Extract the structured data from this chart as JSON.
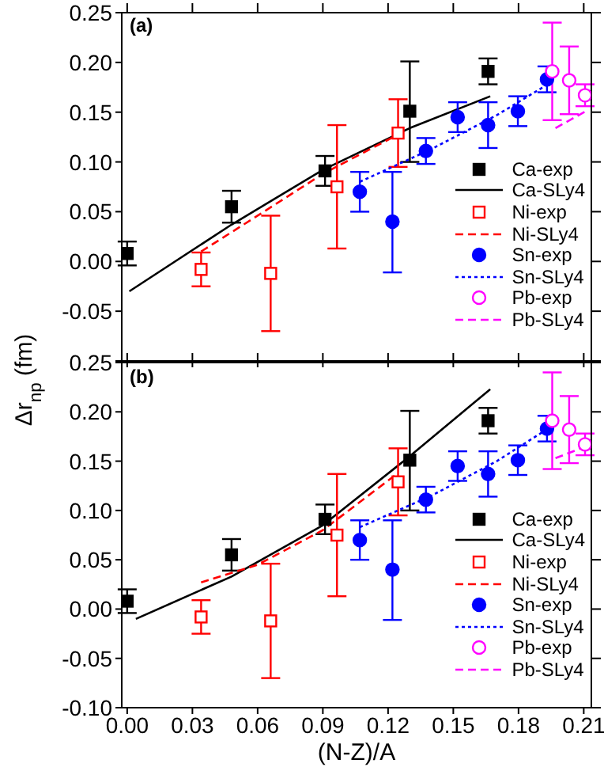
{
  "chart_data": [
    {
      "type": "scatter",
      "annotations": [
        "(a)"
      ],
      "ylabel": "Δr$_{np}$ (fm)",
      "xlim": [
        -0.0025,
        0.2135
      ],
      "xticks": [
        0,
        0.03,
        0.06,
        0.09,
        0.12,
        0.15,
        0.18,
        0.21
      ],
      "ylim": [
        -0.1,
        0.25
      ],
      "yticks": [
        {
          "value": -0.1,
          "label": null
        },
        {
          "value": -0.05,
          "label": "-0.05"
        },
        {
          "value": 0,
          "label": "0.00"
        },
        {
          "value": 0.05,
          "label": "0.05"
        },
        {
          "value": 0.1,
          "label": "0.10"
        },
        {
          "value": 0.15,
          "label": "0.15"
        },
        {
          "value": 0.2,
          "label": "0.20"
        },
        {
          "value": 0.25,
          "label": "0.25"
        }
      ],
      "tick_labels": "y",
      "grid": false,
      "legend": "right",
      "series": [
        {
          "name": "Ca-exp",
          "type": "scatter",
          "marker": "square",
          "color": "#000000",
          "x": [
            0.0,
            0.048,
            0.091,
            0.13,
            0.166
          ],
          "values": [
            0.008,
            0.055,
            0.091,
            0.151,
            0.191
          ],
          "errors": [
            [
              -0.004,
              0.02
            ],
            [
              0.039,
              0.071
            ],
            [
              0.076,
              0.106
            ],
            [
              0.1,
              0.201
            ],
            [
              0.178,
              0.204
            ]
          ]
        },
        {
          "name": "Ca-SLy4",
          "type": "line",
          "line_style": "solid",
          "color": "#000000",
          "x": [
            0.001,
            0.048,
            0.09,
            0.13,
            0.167
          ],
          "values": [
            -0.03,
            0.037,
            0.092,
            0.134,
            0.166
          ]
        },
        {
          "name": "Ni-exp",
          "type": "scatter",
          "marker": "square",
          "color": "#ff0000",
          "x": [
            0.034,
            0.066,
            0.0965,
            0.1246
          ],
          "values": [
            -0.008,
            -0.012,
            0.075,
            0.129
          ],
          "errors": [
            [
              -0.025,
              0.009
            ],
            [
              -0.07,
              0.046
            ],
            [
              0.013,
              0.137
            ],
            [
              0.095,
              0.163
            ]
          ]
        },
        {
          "name": "Ni-SLy4",
          "type": "line",
          "line_style": "dashed",
          "color": "#ff0000",
          "x": [
            0.034,
            0.06,
            0.09,
            0.125
          ],
          "values": [
            0.01,
            0.046,
            0.088,
            0.128
          ]
        },
        {
          "name": "Sn-exp",
          "type": "scatter",
          "marker": "circle",
          "color": "#0000ff",
          "x": [
            0.107,
            0.122,
            0.1374,
            0.152,
            0.166,
            0.1797,
            0.1931
          ],
          "values": [
            0.07,
            0.04,
            0.111,
            0.145,
            0.137,
            0.151,
            0.183
          ],
          "errors": [
            [
              0.05,
              0.09
            ],
            [
              -0.011,
              0.09
            ],
            [
              0.098,
              0.124
            ],
            [
              0.13,
              0.16
            ],
            [
              0.114,
              0.16
            ],
            [
              0.136,
              0.166
            ],
            [
              0.17,
              0.196
            ]
          ]
        },
        {
          "name": "Sn-SLy4",
          "type": "line",
          "line_style": "dotted",
          "color": "#0000ff",
          "x": [
            0.107,
            0.14,
            0.17,
            0.195
          ],
          "values": [
            0.08,
            0.113,
            0.147,
            0.18
          ]
        },
        {
          "name": "Pb-exp",
          "type": "scatter",
          "marker": "circle",
          "color": "#ff00ff",
          "x": [
            0.1955,
            0.2033,
            0.2106
          ],
          "values": [
            0.191,
            0.182,
            0.167
          ],
          "errors": [
            [
              0.142,
              0.24
            ],
            [
              0.148,
              0.216
            ],
            [
              0.156,
              0.178
            ]
          ]
        },
        {
          "name": "Pb-SLy4",
          "type": "line",
          "line_style": "dashed",
          "color": "#ff00ff",
          "x": [
            0.197,
            0.211
          ],
          "values": [
            0.134,
            0.151
          ]
        }
      ]
    },
    {
      "type": "scatter",
      "annotations": [
        "(b)"
      ],
      "xlabel": "(N-Z)/A",
      "xlim": [
        -0.0025,
        0.2135
      ],
      "xticks": [
        {
          "value": 0,
          "label": "0.00"
        },
        {
          "value": 0.03,
          "label": "0.03"
        },
        {
          "value": 0.06,
          "label": "0.06"
        },
        {
          "value": 0.09,
          "label": "0.09"
        },
        {
          "value": 0.12,
          "label": "0.12"
        },
        {
          "value": 0.15,
          "label": "0.15"
        },
        {
          "value": 0.18,
          "label": "0.18"
        },
        {
          "value": 0.21,
          "label": "0.21"
        }
      ],
      "ylim": [
        -0.1,
        0.25
      ],
      "yticks": [
        {
          "value": -0.1,
          "label": "-0.10"
        },
        {
          "value": -0.05,
          "label": "-0.05"
        },
        {
          "value": 0,
          "label": "0.00"
        },
        {
          "value": 0.05,
          "label": "0.05"
        },
        {
          "value": 0.1,
          "label": "0.10"
        },
        {
          "value": 0.15,
          "label": "0.15"
        },
        {
          "value": 0.2,
          "label": "0.20"
        },
        {
          "value": 0.25,
          "label": "0.25"
        }
      ],
      "grid": false,
      "legend": "right",
      "series": [
        {
          "name": "Ca-exp",
          "type": "scatter",
          "marker": "square",
          "color": "#000000",
          "x": [
            0.0,
            0.048,
            0.091,
            0.13,
            0.166
          ],
          "values": [
            0.008,
            0.055,
            0.091,
            0.151,
            0.191
          ],
          "errors": [
            [
              -0.004,
              0.02
            ],
            [
              0.039,
              0.071
            ],
            [
              0.076,
              0.106
            ],
            [
              0.1,
              0.201
            ],
            [
              0.178,
              0.204
            ]
          ]
        },
        {
          "name": "Ca-SLy4",
          "type": "line",
          "line_style": "solid",
          "color": "#000000",
          "x": [
            0.004,
            0.048,
            0.09,
            0.13,
            0.167
          ],
          "values": [
            -0.01,
            0.033,
            0.085,
            0.155,
            0.223
          ]
        },
        {
          "name": "Ni-exp",
          "type": "scatter",
          "marker": "square",
          "color": "#ff0000",
          "x": [
            0.034,
            0.066,
            0.0965,
            0.1246
          ],
          "values": [
            -0.008,
            -0.012,
            0.075,
            0.129
          ],
          "errors": [
            [
              -0.025,
              0.009
            ],
            [
              -0.07,
              0.046
            ],
            [
              0.013,
              0.137
            ],
            [
              0.095,
              0.163
            ]
          ]
        },
        {
          "name": "Ni-SLy4",
          "type": "line",
          "line_style": "dashed",
          "color": "#ff0000",
          "x": [
            0.034,
            0.06,
            0.09,
            0.124
          ],
          "values": [
            0.027,
            0.045,
            0.08,
            0.137
          ]
        },
        {
          "name": "Sn-exp",
          "type": "scatter",
          "marker": "circle",
          "color": "#0000ff",
          "x": [
            0.107,
            0.122,
            0.1374,
            0.152,
            0.166,
            0.1797,
            0.1931
          ],
          "values": [
            0.07,
            0.04,
            0.111,
            0.145,
            0.137,
            0.151,
            0.183
          ],
          "errors": [
            [
              0.05,
              0.09
            ],
            [
              -0.011,
              0.09
            ],
            [
              0.098,
              0.124
            ],
            [
              0.13,
              0.16
            ],
            [
              0.114,
              0.16
            ],
            [
              0.136,
              0.166
            ],
            [
              0.17,
              0.196
            ]
          ]
        },
        {
          "name": "Sn-SLy4",
          "type": "line",
          "line_style": "dotted",
          "color": "#0000ff",
          "x": [
            0.107,
            0.14,
            0.17,
            0.195
          ],
          "values": [
            0.083,
            0.115,
            0.15,
            0.185
          ]
        },
        {
          "name": "Pb-exp",
          "type": "scatter",
          "marker": "circle",
          "color": "#ff00ff",
          "x": [
            0.1955,
            0.2033,
            0.2106
          ],
          "values": [
            0.191,
            0.182,
            0.167
          ],
          "errors": [
            [
              0.142,
              0.24
            ],
            [
              0.148,
              0.216
            ],
            [
              0.156,
              0.178
            ]
          ]
        },
        {
          "name": "Pb-SLy4",
          "type": "line",
          "line_style": "dashed",
          "color": "#ff00ff",
          "x": [
            0.197,
            0.211
          ],
          "values": [
            0.153,
            0.165
          ]
        }
      ]
    }
  ]
}
